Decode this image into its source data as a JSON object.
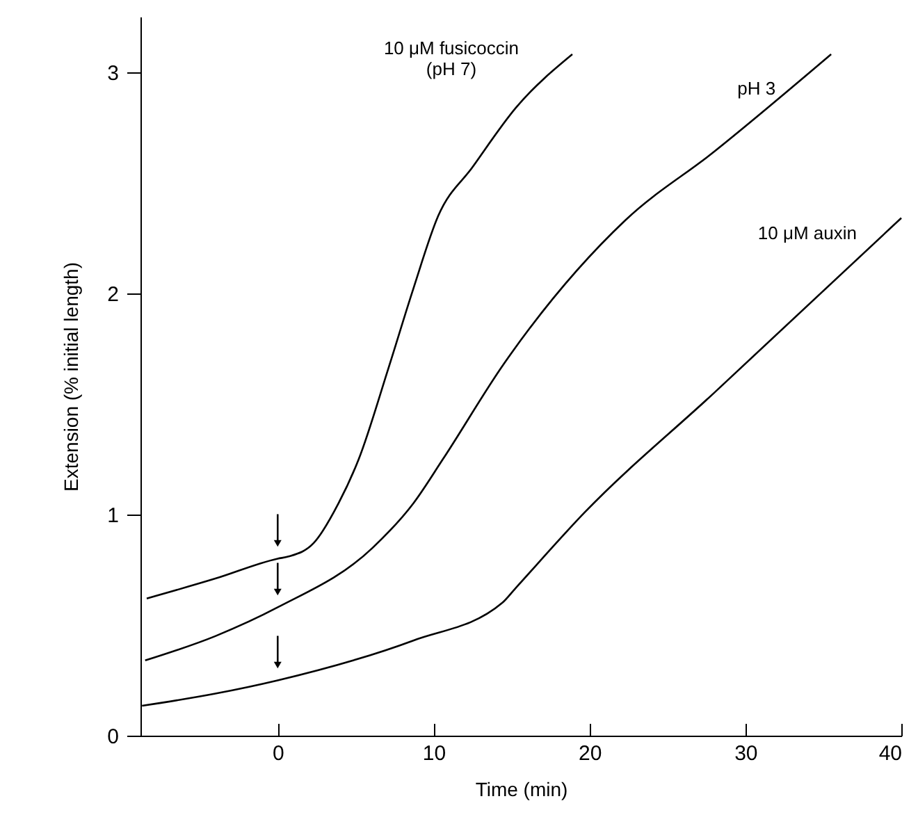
{
  "chart_data": {
    "type": "line",
    "xlabel": "Time (min)",
    "ylabel": "Extension (% initial length)",
    "xlim": [
      -8.8,
      40
    ],
    "ylim": [
      0,
      3.25
    ],
    "xticks": [
      0,
      10,
      20,
      30,
      40
    ],
    "yticks": [
      0,
      1,
      2,
      3
    ],
    "grid": false,
    "marker": "none",
    "line_style": "solid",
    "series": [
      {
        "name": "10 μM fusicoccin\n(pH 7)",
        "color": "#000000",
        "x": [
          -8.4,
          -4,
          0,
          0.7,
          2.3,
          3.9,
          5.2,
          7.1,
          8.7,
          10.3,
          12.5,
          15.3,
          18.9
        ],
        "values": [
          0.62,
          0.71,
          0.8,
          0.81,
          0.87,
          1.05,
          1.25,
          1.66,
          2.02,
          2.35,
          2.57,
          2.84,
          3.08
        ]
      },
      {
        "name": "pH 3",
        "color": "#000000",
        "x": [
          -8.5,
          -4,
          0,
          6.1,
          8.7,
          10.6,
          14.5,
          22.3,
          28,
          35.5
        ],
        "values": [
          0.34,
          0.45,
          0.58,
          0.85,
          1.05,
          1.25,
          1.68,
          2.33,
          2.64,
          3.08
        ]
      },
      {
        "name": "10 μM auxin",
        "color": "#000000",
        "x": [
          -8.7,
          -4,
          0,
          8.7,
          14.4,
          15.3,
          19.7,
          28,
          40
        ],
        "values": [
          0.135,
          0.19,
          0.25,
          0.43,
          0.6,
          0.67,
          1.01,
          1.55,
          2.34
        ]
      }
    ]
  }
}
